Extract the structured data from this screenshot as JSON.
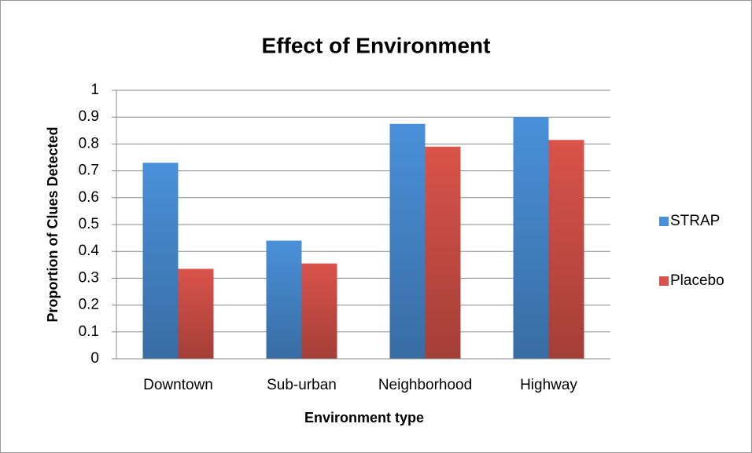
{
  "chart_data": {
    "type": "bar",
    "title": "Effect of Environment",
    "x_label": "Environment type",
    "y_label": "Proportion of Clues Detected",
    "categories": [
      "Downtown",
      "Sub-urban",
      "Neighborhood",
      "Highway"
    ],
    "series": [
      {
        "name": "STRAP",
        "color": "#4a90d9",
        "values": [
          0.73,
          0.44,
          0.875,
          0.9
        ]
      },
      {
        "name": "Placebo",
        "color": "#d9534a",
        "values": [
          0.335,
          0.355,
          0.79,
          0.815
        ]
      }
    ],
    "ylim": [
      0,
      1
    ],
    "yticks": [
      0,
      0.1,
      0.2,
      0.3,
      0.4,
      0.5,
      0.6,
      0.7,
      0.8,
      0.9,
      1
    ],
    "grid": true,
    "legend": "right"
  }
}
